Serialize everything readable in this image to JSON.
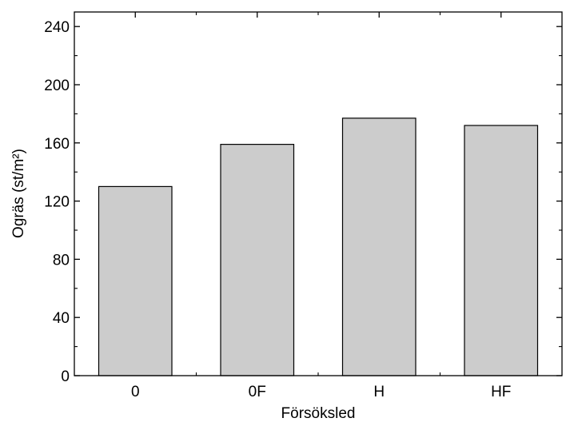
{
  "chart_data": {
    "type": "bar",
    "categories": [
      "0",
      "0F",
      "H",
      "HF"
    ],
    "values": [
      130,
      159,
      177,
      172
    ],
    "title": "",
    "xlabel": "Försöksled",
    "ylabel": "Ogräs (st/m²)",
    "ylim": [
      0,
      250
    ],
    "yticks": [
      0,
      40,
      80,
      120,
      160,
      200,
      240
    ],
    "grid": false,
    "legend": "none",
    "bar_color": "#cccccc",
    "bar_edge_color": "#000000"
  }
}
